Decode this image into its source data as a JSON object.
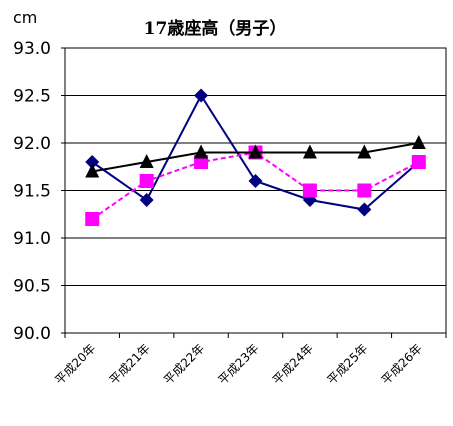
{
  "chart_data": {
    "type": "line",
    "title": "17歳座高（男子）",
    "ylabel": "cm",
    "xlabel": "",
    "categories": [
      "平成20年",
      "平成21年",
      "平成22年",
      "平成23年",
      "平成24年",
      "平成25年",
      "平成26年"
    ],
    "ylim": [
      90.0,
      93.0
    ],
    "yticks": [
      "90.0",
      "90.5",
      "91.0",
      "91.5",
      "92.0",
      "92.5",
      "93.0"
    ],
    "ytick_values": [
      90.0,
      90.5,
      91.0,
      91.5,
      92.0,
      92.5,
      93.0
    ],
    "grid": true,
    "legend": "none",
    "series": [
      {
        "color": "#000080",
        "marker": "diamond",
        "dash": "solid",
        "values": [
          91.8,
          91.4,
          92.5,
          91.6,
          91.4,
          91.3,
          91.8
        ]
      },
      {
        "color": "#ff00ff",
        "marker": "square",
        "dash": "dashed",
        "values": [
          91.2,
          91.6,
          91.8,
          91.9,
          91.5,
          91.5,
          91.8
        ]
      },
      {
        "color": "#000000",
        "marker": "triangle",
        "dash": "solid",
        "values": [
          91.7,
          91.8,
          91.9,
          91.9,
          91.9,
          91.9,
          92.0
        ]
      }
    ]
  }
}
